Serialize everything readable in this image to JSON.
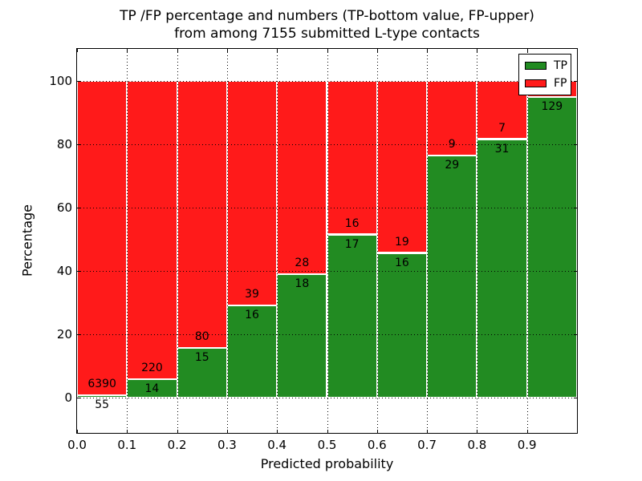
{
  "figure": {
    "title_line1": "TP /FP percentage and numbers (TP-bottom value, FP-upper)",
    "title_line2": "from among 7155 submitted L-type contacts",
    "xlabel": "Predicted probability",
    "ylabel": "Percentage"
  },
  "legend": {
    "items": [
      {
        "label": "TP",
        "color": "#228b22"
      },
      {
        "label": "FP",
        "color": "#ff1a1a"
      }
    ]
  },
  "colors": {
    "tp": "#228b22",
    "fp": "#ff1a1a",
    "grid": "#000000",
    "text": "#000000",
    "background": "#ffffff"
  },
  "chart_data": {
    "type": "bar",
    "stacked": true,
    "title": "TP /FP percentage and numbers (TP-bottom value, FP-upper) from among 7155 submitted L-type contacts",
    "xlabel": "Predicted probability",
    "ylabel": "Percentage",
    "total_submitted_contacts": 7155,
    "xlim": [
      0.0,
      1.0
    ],
    "ylim": [
      -11,
      110
    ],
    "yticks": [
      0,
      20,
      40,
      60,
      80,
      100
    ],
    "xticks": [
      "0.0",
      "0.1",
      "0.2",
      "0.3",
      "0.4",
      "0.5",
      "0.6",
      "0.7",
      "0.8",
      "0.9"
    ],
    "bin_width": 0.1,
    "grid": "dotted",
    "legend_position": "upper right",
    "series": [
      {
        "name": "TP",
        "color": "#228b22"
      },
      {
        "name": "FP",
        "color": "#ff1a1a"
      }
    ],
    "bars": [
      {
        "x_start": 0.0,
        "tp_count": 55,
        "fp_count": 6390,
        "tp_pct": 0.85,
        "fp_label_visible": true
      },
      {
        "x_start": 0.1,
        "tp_count": 14,
        "fp_count": 220,
        "tp_pct": 5.98,
        "fp_label_visible": true
      },
      {
        "x_start": 0.2,
        "tp_count": 15,
        "fp_count": 80,
        "tp_pct": 15.79,
        "fp_label_visible": true
      },
      {
        "x_start": 0.3,
        "tp_count": 16,
        "fp_count": 39,
        "tp_pct": 29.09,
        "fp_label_visible": true
      },
      {
        "x_start": 0.4,
        "tp_count": 18,
        "fp_count": 28,
        "tp_pct": 39.13,
        "fp_label_visible": true
      },
      {
        "x_start": 0.5,
        "tp_count": 17,
        "fp_count": 16,
        "tp_pct": 51.52,
        "fp_label_visible": true
      },
      {
        "x_start": 0.6,
        "tp_count": 16,
        "fp_count": 19,
        "tp_pct": 45.71,
        "fp_label_visible": true
      },
      {
        "x_start": 0.7,
        "tp_count": 29,
        "fp_count": 9,
        "tp_pct": 76.32,
        "fp_label_visible": true
      },
      {
        "x_start": 0.8,
        "tp_count": 31,
        "fp_count": 7,
        "tp_pct": 81.58,
        "fp_label_visible": true
      },
      {
        "x_start": 0.9,
        "tp_count": 129,
        "fp_count": null,
        "tp_pct": 94.9,
        "fp_label_visible": false
      }
    ]
  }
}
